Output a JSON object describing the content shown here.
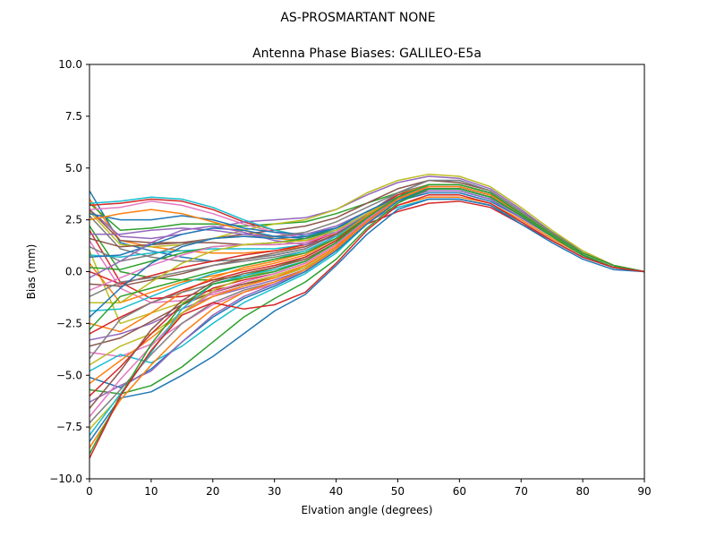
{
  "chart_data": {
    "type": "line",
    "suptitle": "AS-PROSMARTANT  NONE",
    "title": "Antenna Phase Biases: GALILEO-E5a",
    "xlabel": "Elvation angle (degrees)",
    "ylabel": "Bias (mm)",
    "xlim": [
      0,
      90
    ],
    "ylim": [
      -10,
      10
    ],
    "xticks": [
      0,
      10,
      20,
      30,
      40,
      50,
      60,
      70,
      80,
      90
    ],
    "xtick_labels": [
      "0",
      "10",
      "20",
      "30",
      "40",
      "50",
      "60",
      "70",
      "80",
      "90"
    ],
    "yticks": [
      -10,
      -7.5,
      -5,
      -2.5,
      0,
      2.5,
      5,
      7.5,
      10
    ],
    "ytick_labels": [
      "−10.0",
      "−7.5",
      "−5.0",
      "−2.5",
      "0.0",
      "2.5",
      "5.0",
      "7.5",
      "10.0"
    ],
    "grid": false,
    "legend": "none",
    "colors": [
      "#1f77b4",
      "#ff7f0e",
      "#2ca02c",
      "#d62728",
      "#9467bd",
      "#8c564b",
      "#e377c2",
      "#7f7f7f",
      "#bcbd22",
      "#17becf"
    ],
    "x": [
      0,
      5,
      10,
      15,
      20,
      25,
      30,
      35,
      40,
      45,
      50,
      55,
      60,
      65,
      70,
      75,
      80,
      85,
      90
    ],
    "series": [
      {
        "values": [
          3.9,
          1.4,
          1.0,
          0.7,
          0.5,
          0.6,
          0.8,
          1.1,
          1.8,
          2.8,
          3.8,
          4.4,
          4.4,
          3.9,
          2.9,
          1.9,
          0.9,
          0.3,
          0.0
        ]
      },
      {
        "values": [
          3.5,
          1.5,
          1.2,
          1.0,
          0.9,
          0.9,
          1.0,
          1.2,
          1.8,
          2.6,
          3.5,
          4.1,
          4.1,
          3.7,
          2.8,
          1.8,
          0.9,
          0.3,
          0.0
        ]
      },
      {
        "values": [
          3.3,
          2.0,
          2.1,
          2.3,
          2.3,
          2.2,
          2.3,
          2.4,
          2.8,
          3.3,
          3.8,
          4.1,
          4.1,
          3.7,
          2.8,
          1.8,
          0.9,
          0.3,
          0.0
        ]
      },
      {
        "values": [
          3.2,
          3.3,
          3.5,
          3.4,
          3.0,
          2.4,
          2.0,
          1.7,
          1.8,
          2.3,
          2.9,
          3.3,
          3.4,
          3.1,
          2.3,
          1.5,
          0.7,
          0.2,
          0.0
        ]
      },
      {
        "values": [
          3.0,
          1.7,
          1.6,
          1.8,
          2.1,
          2.4,
          2.5,
          2.6,
          3.0,
          3.7,
          4.3,
          4.6,
          4.5,
          4.0,
          3.0,
          1.9,
          1.0,
          0.3,
          0.0
        ]
      },
      {
        "values": [
          3.0,
          1.5,
          1.4,
          1.4,
          1.6,
          1.8,
          2.0,
          2.2,
          2.6,
          3.3,
          4.0,
          4.4,
          4.3,
          3.9,
          2.9,
          1.9,
          0.9,
          0.3,
          0.0
        ]
      },
      {
        "values": [
          3.0,
          3.1,
          3.4,
          3.2,
          2.8,
          2.3,
          1.9,
          1.6,
          1.8,
          2.4,
          3.1,
          3.5,
          3.5,
          3.2,
          2.4,
          1.5,
          0.7,
          0.2,
          0.0
        ]
      },
      {
        "values": [
          2.7,
          1.1,
          0.7,
          0.5,
          0.5,
          0.6,
          0.8,
          1.1,
          1.8,
          2.8,
          3.8,
          4.4,
          4.4,
          3.9,
          2.9,
          1.9,
          0.9,
          0.3,
          0.0
        ]
      },
      {
        "values": [
          2.9,
          1.3,
          1.2,
          1.3,
          1.6,
          2.0,
          2.3,
          2.5,
          3.0,
          3.8,
          4.4,
          4.7,
          4.6,
          4.1,
          3.1,
          2.0,
          1.0,
          0.3,
          0.0
        ]
      },
      {
        "values": [
          3.3,
          3.4,
          3.6,
          3.5,
          3.1,
          2.5,
          2.0,
          1.7,
          1.9,
          2.5,
          3.1,
          3.5,
          3.5,
          3.2,
          2.4,
          1.5,
          0.7,
          0.2,
          0.0
        ]
      },
      {
        "values": [
          2.8,
          2.5,
          2.5,
          2.7,
          2.5,
          2.1,
          1.9,
          1.8,
          2.1,
          2.7,
          3.4,
          3.8,
          3.8,
          3.4,
          2.6,
          1.7,
          0.8,
          0.2,
          0.0
        ]
      },
      {
        "values": [
          2.5,
          2.8,
          3.0,
          2.8,
          2.4,
          2.0,
          1.6,
          1.5,
          1.8,
          2.5,
          3.2,
          3.6,
          3.6,
          3.3,
          2.5,
          1.6,
          0.8,
          0.2,
          0.0
        ]
      },
      {
        "values": [
          2.2,
          0.0,
          -0.3,
          -0.4,
          -0.4,
          -0.2,
          0.2,
          0.7,
          1.5,
          2.6,
          3.6,
          4.2,
          4.2,
          3.8,
          2.8,
          1.8,
          0.9,
          0.3,
          0.0
        ]
      },
      {
        "values": [
          2.0,
          -0.5,
          -1.3,
          -1.2,
          -0.9,
          -0.6,
          -0.2,
          0.3,
          1.2,
          2.5,
          3.6,
          4.2,
          4.2,
          3.8,
          2.8,
          1.8,
          0.9,
          0.3,
          0.0
        ]
      },
      {
        "values": [
          1.8,
          1.8,
          2.0,
          2.1,
          2.0,
          1.8,
          1.7,
          1.8,
          2.2,
          2.9,
          3.6,
          4.0,
          4.0,
          3.6,
          2.7,
          1.7,
          0.8,
          0.2,
          0.0
        ]
      },
      {
        "values": [
          1.6,
          1.2,
          1.3,
          1.4,
          1.4,
          1.3,
          1.3,
          1.4,
          1.9,
          2.7,
          3.5,
          4.0,
          4.0,
          3.6,
          2.7,
          1.7,
          0.8,
          0.2,
          0.0
        ]
      },
      {
        "values": [
          1.5,
          -0.8,
          -1.5,
          -1.4,
          -1.1,
          -0.7,
          -0.3,
          0.2,
          1.1,
          2.4,
          3.5,
          4.1,
          4.1,
          3.7,
          2.8,
          1.8,
          0.9,
          0.3,
          0.0
        ]
      },
      {
        "values": [
          1.2,
          0.5,
          0.8,
          1.3,
          1.6,
          1.7,
          1.7,
          1.9,
          2.4,
          3.1,
          3.8,
          4.2,
          4.2,
          3.8,
          2.8,
          1.8,
          0.9,
          0.3,
          0.0
        ]
      },
      {
        "values": [
          1.0,
          -2.5,
          -2.0,
          -1.5,
          -1.0,
          -0.6,
          -0.2,
          0.3,
          1.2,
          2.5,
          3.6,
          4.2,
          4.2,
          3.8,
          2.8,
          1.8,
          0.9,
          0.3,
          0.0
        ]
      },
      {
        "values": [
          0.8,
          0.7,
          0.9,
          1.0,
          1.1,
          1.1,
          1.1,
          1.3,
          1.9,
          2.7,
          3.5,
          4.0,
          4.0,
          3.6,
          2.7,
          1.7,
          0.8,
          0.2,
          0.0
        ]
      },
      {
        "values": [
          0.7,
          0.8,
          1.3,
          1.8,
          2.1,
          2.0,
          1.7,
          1.6,
          2.0,
          2.8,
          3.5,
          3.9,
          3.9,
          3.5,
          2.6,
          1.7,
          0.8,
          0.2,
          0.0
        ]
      },
      {
        "values": [
          0.4,
          -1.5,
          -1.0,
          -0.5,
          -0.2,
          0.1,
          0.4,
          0.8,
          1.6,
          2.7,
          3.7,
          4.2,
          4.2,
          3.8,
          2.8,
          1.8,
          0.9,
          0.3,
          0.0
        ]
      },
      {
        "values": [
          0.2,
          0.1,
          0.5,
          0.9,
          1.2,
          1.3,
          1.4,
          1.6,
          2.1,
          2.9,
          3.6,
          4.0,
          4.0,
          3.6,
          2.7,
          1.7,
          0.8,
          0.2,
          0.0
        ]
      },
      {
        "values": [
          0.0,
          -0.6,
          -0.2,
          0.2,
          0.5,
          0.8,
          1.0,
          1.3,
          1.9,
          2.8,
          3.7,
          4.1,
          4.1,
          3.7,
          2.8,
          1.8,
          0.9,
          0.3,
          0.0
        ]
      },
      {
        "values": [
          -0.3,
          0.5,
          1.4,
          2.0,
          2.2,
          1.9,
          1.5,
          1.3,
          1.7,
          2.6,
          3.4,
          3.9,
          3.9,
          3.5,
          2.6,
          1.7,
          0.8,
          0.2,
          0.0
        ]
      },
      {
        "values": [
          -0.6,
          -0.7,
          -0.4,
          -0.1,
          0.3,
          0.6,
          0.9,
          1.2,
          1.8,
          2.7,
          3.6,
          4.1,
          4.1,
          3.7,
          2.8,
          1.8,
          0.9,
          0.3,
          0.0
        ]
      },
      {
        "values": [
          -0.9,
          -0.3,
          0.3,
          0.8,
          1.2,
          1.3,
          1.3,
          1.4,
          1.9,
          2.8,
          3.6,
          4.1,
          4.1,
          3.7,
          2.8,
          1.8,
          0.9,
          0.3,
          0.0
        ]
      },
      {
        "values": [
          -1.2,
          -0.5,
          -0.3,
          0.0,
          0.3,
          0.5,
          0.7,
          1.0,
          1.6,
          2.6,
          3.5,
          4.0,
          4.0,
          3.6,
          2.7,
          1.7,
          0.8,
          0.2,
          0.0
        ]
      },
      {
        "values": [
          -1.5,
          -1.5,
          -0.5,
          0.4,
          1.0,
          1.3,
          1.4,
          1.5,
          2.0,
          2.8,
          3.6,
          4.0,
          4.0,
          3.6,
          2.7,
          1.7,
          0.8,
          0.2,
          0.0
        ]
      },
      {
        "values": [
          -1.9,
          -1.8,
          -1.2,
          -0.6,
          -0.1,
          0.3,
          0.6,
          1.0,
          1.7,
          2.7,
          3.6,
          4.1,
          4.1,
          3.7,
          2.8,
          1.8,
          0.9,
          0.3,
          0.0
        ]
      },
      {
        "values": [
          -2.2,
          -0.8,
          0.4,
          1.2,
          1.6,
          1.7,
          1.6,
          1.7,
          2.1,
          2.9,
          3.6,
          4.0,
          4.0,
          3.6,
          2.7,
          1.7,
          0.8,
          0.2,
          0.0
        ]
      },
      {
        "values": [
          -2.5,
          -2.9,
          -2.0,
          -1.0,
          -0.3,
          0.2,
          0.5,
          0.9,
          1.6,
          2.7,
          3.6,
          4.1,
          4.1,
          3.7,
          2.8,
          1.8,
          0.9,
          0.3,
          0.0
        ]
      },
      {
        "values": [
          -2.8,
          -1.2,
          -0.8,
          -0.4,
          0.0,
          0.3,
          0.6,
          0.9,
          1.6,
          2.6,
          3.5,
          4.0,
          4.0,
          3.6,
          2.7,
          1.7,
          0.8,
          0.2,
          0.0
        ]
      },
      {
        "values": [
          -3.0,
          -2.2,
          -1.5,
          -0.9,
          -0.4,
          0.0,
          0.3,
          0.7,
          1.5,
          2.6,
          3.6,
          4.1,
          4.1,
          3.7,
          2.8,
          1.8,
          0.9,
          0.3,
          0.0
        ]
      },
      {
        "values": [
          -3.3,
          -3.0,
          -2.5,
          -1.8,
          -1.2,
          -0.8,
          -0.4,
          0.1,
          1.1,
          2.4,
          3.5,
          4.1,
          4.1,
          3.7,
          2.8,
          1.8,
          0.9,
          0.3,
          0.0
        ]
      },
      {
        "values": [
          -3.6,
          -3.2,
          -2.4,
          -1.6,
          -1.0,
          -0.6,
          -0.3,
          0.2,
          1.1,
          2.4,
          3.5,
          4.1,
          4.1,
          3.7,
          2.8,
          1.8,
          0.9,
          0.3,
          0.0
        ]
      },
      {
        "values": [
          -3.9,
          -4.1,
          -3.5,
          -2.5,
          -1.6,
          -1.0,
          -0.6,
          0.0,
          1.0,
          2.3,
          3.4,
          4.0,
          4.0,
          3.6,
          2.7,
          1.7,
          0.8,
          0.2,
          0.0
        ]
      },
      {
        "values": [
          -4.2,
          -2.3,
          -1.5,
          -1.0,
          -0.6,
          -0.3,
          0.0,
          0.5,
          1.4,
          2.6,
          3.6,
          4.1,
          4.1,
          3.7,
          2.8,
          1.8,
          0.9,
          0.3,
          0.0
        ]
      },
      {
        "values": [
          -4.5,
          -3.6,
          -3.0,
          -2.0,
          -1.2,
          -0.7,
          -0.3,
          0.2,
          1.1,
          2.4,
          3.5,
          4.1,
          4.1,
          3.7,
          2.8,
          1.8,
          0.9,
          0.3,
          0.0
        ]
      },
      {
        "values": [
          -4.8,
          -4.0,
          -4.4,
          -3.6,
          -2.5,
          -1.5,
          -0.8,
          -0.1,
          0.9,
          2.3,
          3.4,
          4.0,
          4.0,
          3.6,
          2.7,
          1.7,
          0.8,
          0.2,
          0.0
        ]
      },
      {
        "values": [
          -5.1,
          -5.6,
          -4.7,
          -3.4,
          -2.2,
          -1.3,
          -0.7,
          0.0,
          1.0,
          2.3,
          3.4,
          4.0,
          4.0,
          3.6,
          2.7,
          1.7,
          0.8,
          0.2,
          0.0
        ]
      },
      {
        "values": [
          -5.4,
          -4.3,
          -3.2,
          -2.0,
          -1.2,
          -0.7,
          -0.3,
          0.3,
          1.2,
          2.5,
          3.6,
          4.1,
          4.1,
          3.7,
          2.8,
          1.8,
          0.9,
          0.3,
          0.0
        ]
      },
      {
        "values": [
          -5.7,
          -5.9,
          -5.5,
          -4.6,
          -3.4,
          -2.2,
          -1.3,
          -0.5,
          0.6,
          2.1,
          3.3,
          4.0,
          4.0,
          3.6,
          2.7,
          1.7,
          0.8,
          0.2,
          0.0
        ]
      },
      {
        "values": [
          -6.0,
          -4.6,
          -3.0,
          -1.6,
          -0.8,
          -0.4,
          -0.1,
          0.4,
          1.3,
          2.5,
          3.5,
          4.1,
          4.1,
          3.7,
          2.8,
          1.8,
          0.9,
          0.3,
          0.0
        ]
      },
      {
        "values": [
          -6.3,
          -5.5,
          -4.8,
          -3.4,
          -2.1,
          -1.2,
          -0.6,
          0.1,
          1.1,
          2.4,
          3.5,
          4.1,
          4.1,
          3.7,
          2.8,
          1.8,
          0.9,
          0.3,
          0.0
        ]
      },
      {
        "values": [
          -6.6,
          -4.8,
          -2.8,
          -1.4,
          -0.5,
          -0.1,
          0.2,
          0.6,
          1.4,
          2.6,
          3.6,
          4.1,
          4.1,
          3.7,
          2.8,
          1.8,
          0.9,
          0.3,
          0.0
        ]
      },
      {
        "values": [
          -7.0,
          -5.2,
          -3.6,
          -2.0,
          -1.0,
          -0.5,
          -0.1,
          0.4,
          1.3,
          2.5,
          3.6,
          4.1,
          4.1,
          3.7,
          2.8,
          1.8,
          0.9,
          0.3,
          0.0
        ]
      },
      {
        "values": [
          -7.3,
          -5.7,
          -4.0,
          -2.5,
          -1.5,
          -0.9,
          -0.5,
          0.1,
          1.1,
          2.4,
          3.5,
          4.1,
          4.1,
          3.7,
          2.8,
          1.8,
          0.9,
          0.3,
          0.0
        ]
      },
      {
        "values": [
          -7.6,
          -6.0,
          -3.8,
          -2.0,
          -0.9,
          -0.3,
          0.1,
          0.5,
          1.4,
          2.6,
          3.6,
          4.2,
          4.2,
          3.8,
          2.8,
          1.8,
          0.9,
          0.3,
          0.0
        ]
      },
      {
        "values": [
          -7.9,
          -5.9,
          -3.9,
          -1.8,
          -0.6,
          -0.2,
          0.1,
          0.5,
          1.4,
          2.6,
          3.6,
          4.2,
          4.2,
          3.8,
          2.8,
          1.8,
          0.9,
          0.3,
          0.0
        ]
      },
      {
        "values": [
          -8.2,
          -6.1,
          -5.8,
          -5.0,
          -4.1,
          -3.0,
          -1.9,
          -1.1,
          0.3,
          1.8,
          3.0,
          3.5,
          3.5,
          3.2,
          2.3,
          1.4,
          0.6,
          0.1,
          0.0
        ]
      },
      {
        "values": [
          -8.5,
          -6.2,
          -4.5,
          -3.0,
          -1.8,
          -1.0,
          -0.5,
          0.1,
          1.1,
          2.4,
          3.5,
          4.1,
          4.1,
          3.7,
          2.8,
          1.8,
          0.9,
          0.3,
          0.0
        ]
      },
      {
        "values": [
          -8.8,
          -6.0,
          -3.5,
          -1.6,
          -0.6,
          -0.3,
          0.0,
          0.5,
          1.4,
          2.6,
          3.6,
          4.2,
          4.2,
          3.8,
          2.8,
          1.8,
          0.9,
          0.3,
          0.0
        ]
      },
      {
        "values": [
          -9.0,
          -6.0,
          -3.8,
          -2.1,
          -1.5,
          -1.8,
          -1.6,
          -1.0,
          0.4,
          2.0,
          3.2,
          3.7,
          3.7,
          3.3,
          2.4,
          1.5,
          0.7,
          0.2,
          0.0
        ]
      }
    ]
  }
}
